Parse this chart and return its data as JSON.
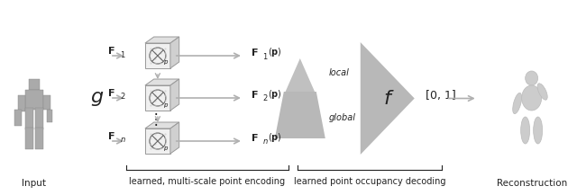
{
  "bg_color": "#ffffff",
  "light_gray": "#c8c8c8",
  "lighter_gray": "#d8d8d8",
  "cube_face_color": "#e8e8e8",
  "cube_edge_color": "#aaaaaa",
  "arrow_color": "#b0b0b0",
  "text_color": "#222222",
  "title": "",
  "bottom_label_encoding": "learned, multi-scale point encoding",
  "bottom_label_decoding": "learned point occupancy decoding",
  "label_input": "Input",
  "label_reconstruction": "Reconstruction",
  "label_local": "local",
  "label_global": "global",
  "label_g": "g",
  "label_f": "f",
  "label_01": "[0, 1]",
  "figsize": [
    6.4,
    2.17
  ],
  "dpi": 100
}
